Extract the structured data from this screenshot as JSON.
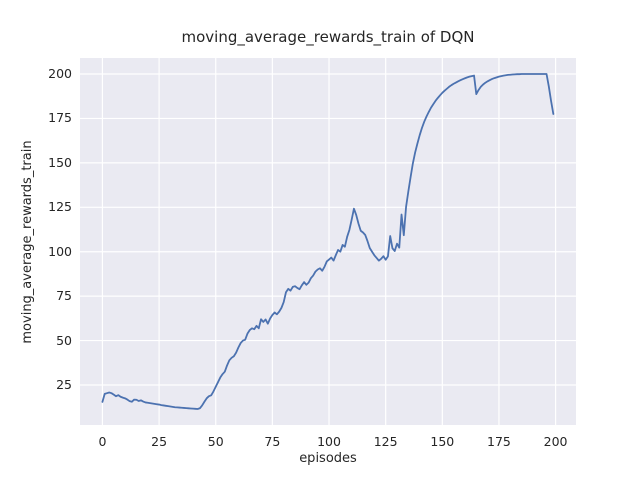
{
  "chart_data": {
    "type": "line",
    "title": "moving_average_rewards_train of DQN",
    "xlabel": "episodes",
    "ylabel": "moving_average_rewards_train",
    "x_ticks": [
      0,
      25,
      50,
      75,
      100,
      125,
      150,
      175,
      200
    ],
    "y_ticks": [
      25,
      50,
      75,
      100,
      125,
      150,
      175,
      200
    ],
    "xlim": [
      -9.9,
      209.0
    ],
    "ylim": [
      2.5,
      209.0
    ],
    "grid": true,
    "legend_position": "none",
    "line_color": "#4c72b0",
    "plot_bg_color": "#eaeaf2",
    "grid_color": "#ffffff",
    "text_color": "#262626",
    "series": [
      {
        "name": "moving_average_rewards_train",
        "x_start": 0,
        "x_step": 1,
        "values": [
          15.5,
          20.0,
          20.4,
          20.8,
          20.4,
          19.6,
          18.7,
          19.3,
          18.4,
          17.9,
          17.5,
          16.8,
          15.9,
          15.6,
          16.8,
          16.7,
          16.0,
          16.4,
          15.7,
          15.2,
          15.0,
          14.8,
          14.6,
          14.4,
          14.2,
          14.0,
          13.7,
          13.5,
          13.3,
          13.1,
          12.9,
          12.7,
          12.5,
          12.4,
          12.3,
          12.2,
          12.1,
          12.0,
          11.9,
          11.8,
          11.7,
          11.6,
          11.5,
          11.9,
          13.5,
          15.6,
          17.5,
          18.7,
          19.2,
          21.4,
          24.0,
          26.6,
          29.2,
          31.1,
          32.5,
          36.0,
          38.9,
          40.3,
          41.2,
          43.2,
          46.1,
          48.6,
          50.0,
          50.5,
          53.9,
          55.9,
          56.9,
          56.4,
          58.3,
          56.9,
          62.0,
          60.5,
          61.9,
          59.5,
          62.4,
          64.4,
          65.8,
          64.8,
          66.3,
          68.4,
          71.7,
          77.2,
          79.1,
          78.1,
          80.2,
          80.6,
          79.6,
          78.9,
          81.1,
          82.9,
          81.4,
          82.6,
          85.1,
          86.6,
          88.8,
          90.0,
          90.7,
          89.3,
          91.5,
          94.5,
          95.6,
          96.7,
          95.0,
          98.1,
          101.0,
          100.0,
          103.8,
          102.8,
          108.4,
          112.3,
          118.1,
          124.2,
          120.7,
          115.8,
          111.8,
          110.8,
          109.4,
          105.9,
          102.0,
          100.0,
          98.0,
          96.5,
          95.0,
          96.0,
          97.5,
          95.5,
          97.4,
          108.8,
          101.9,
          100.4,
          104.5,
          102.3,
          120.9,
          109.3,
          125.2,
          133.9,
          142.0,
          149.7,
          155.8,
          160.8,
          165.5,
          169.6,
          173.1,
          176.0,
          178.6,
          181.0,
          183.0,
          184.9,
          186.5,
          188.0,
          189.4,
          190.6,
          191.7,
          192.8,
          193.7,
          194.5,
          195.2,
          195.9,
          196.5,
          197.1,
          197.6,
          198.1,
          198.5,
          198.8,
          199.1,
          188.7,
          191.0,
          192.8,
          194.1,
          195.1,
          195.9,
          196.6,
          197.2,
          197.7,
          198.1,
          198.5,
          198.8,
          199.1,
          199.3,
          199.5,
          199.6,
          199.7,
          199.8,
          199.9,
          199.9,
          200.0,
          200.0,
          200.0,
          200.0,
          200.0,
          200.0,
          200.0,
          200.0,
          200.0,
          200.0,
          200.0,
          200.0,
          193.0,
          184.8,
          177.5
        ]
      }
    ]
  }
}
